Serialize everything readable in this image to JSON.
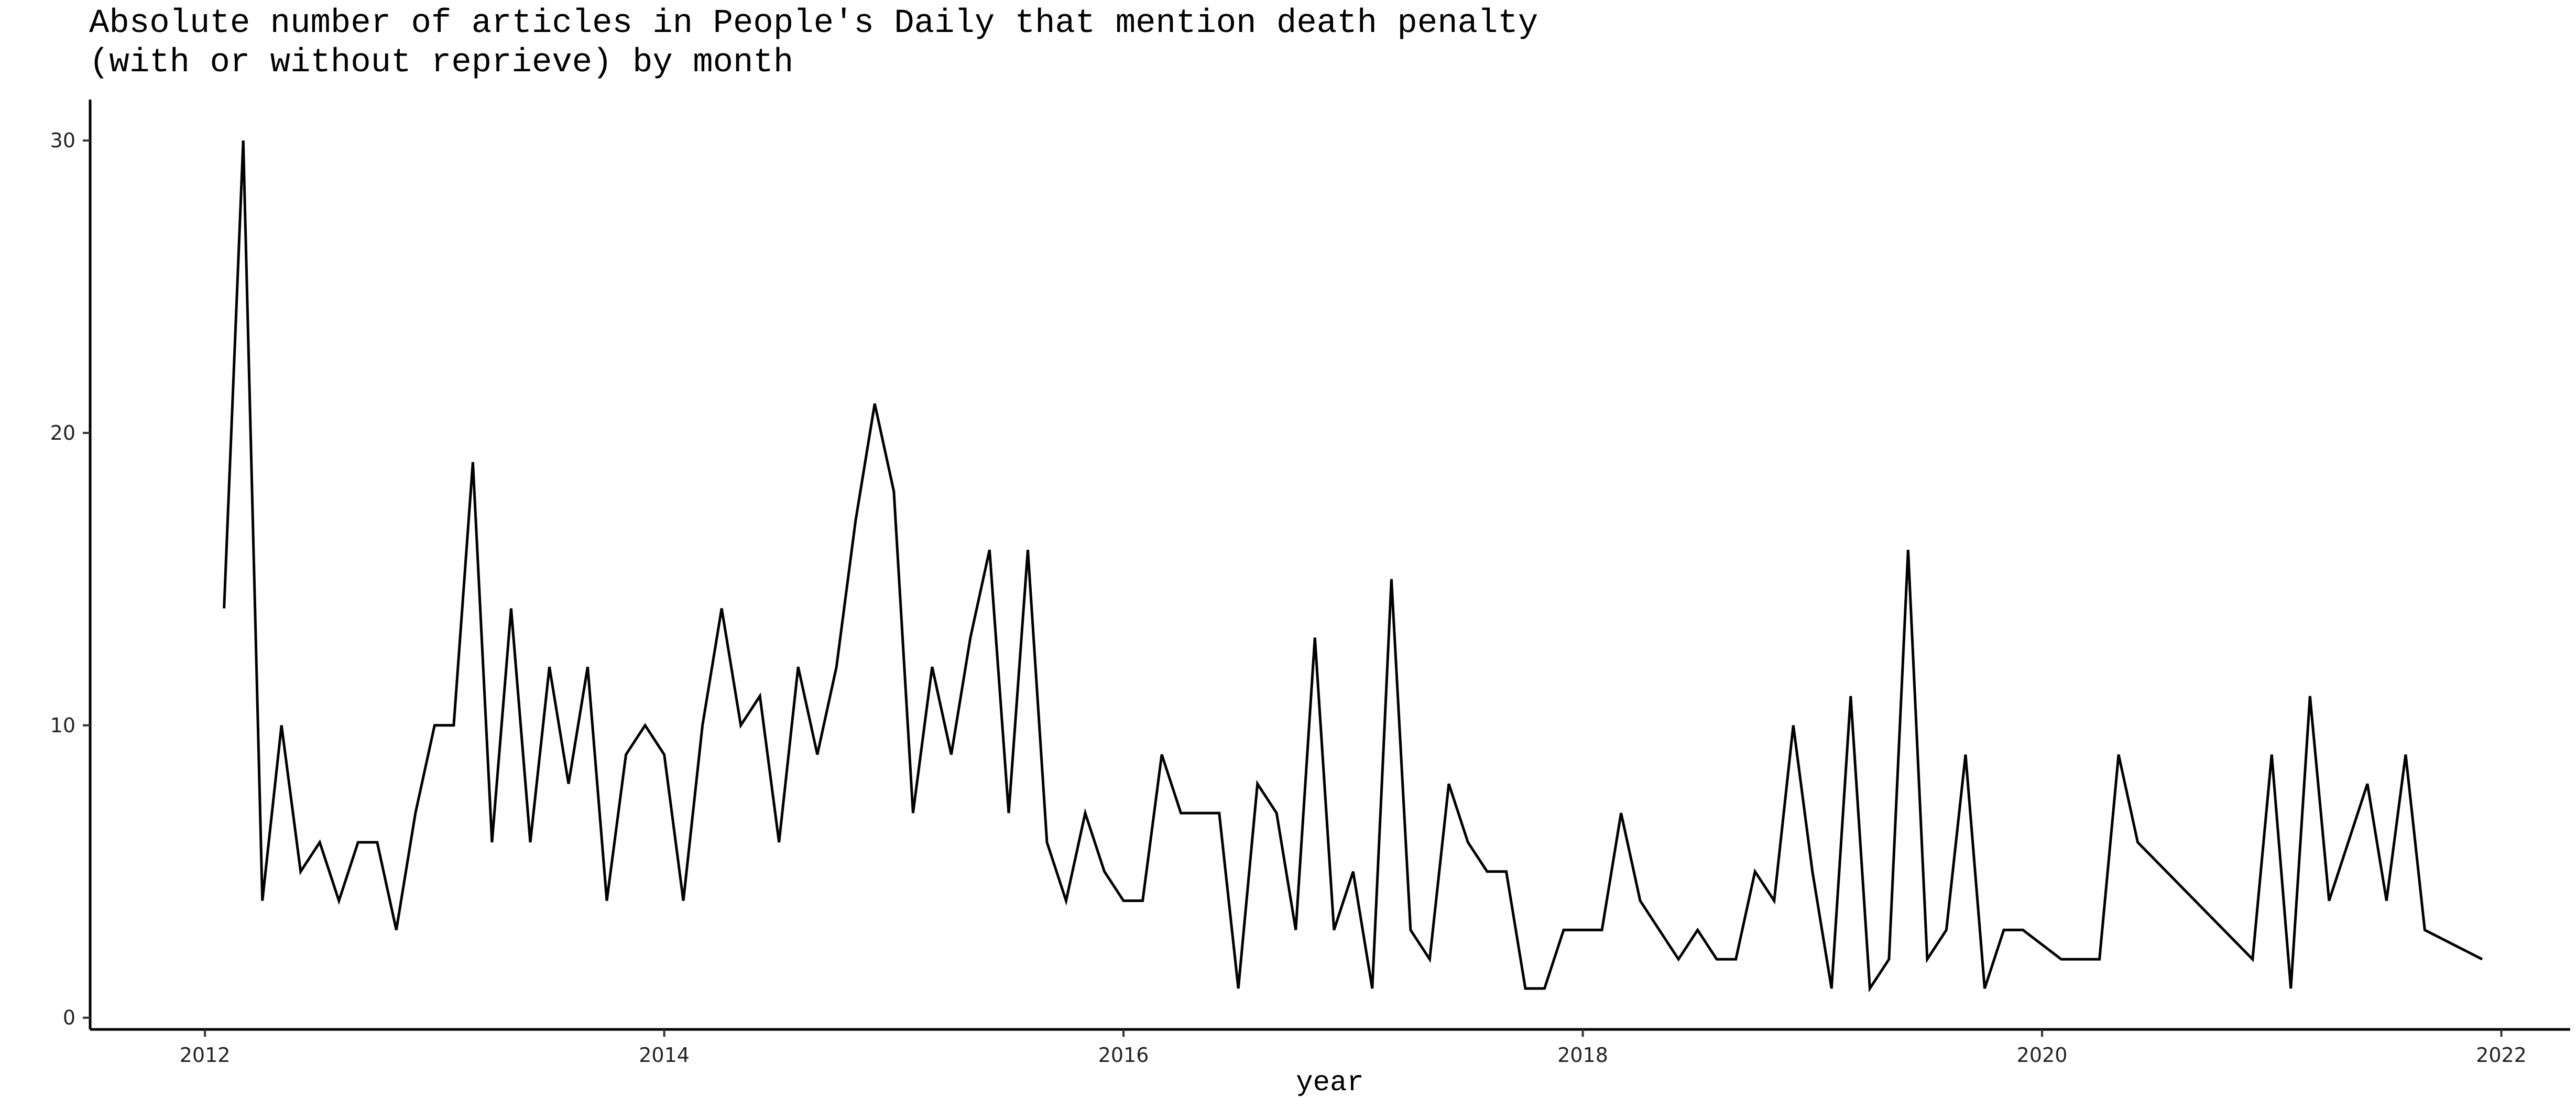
{
  "chart_data": {
    "type": "line",
    "title_line1": "Absolute number of articles in People's Daily that mention death penalty",
    "title_line2": "(with or without reprieve) by month",
    "xlabel": "year",
    "ylabel": "",
    "xlim": [
      2011.5,
      2022.3
    ],
    "ylim": [
      -0.4,
      31.4
    ],
    "x_ticks": [
      "2012",
      "2014",
      "2016",
      "2018",
      "2020",
      "2022"
    ],
    "y_ticks": [
      "0",
      "10",
      "20",
      "30"
    ],
    "grid": false,
    "line_color": "#000000",
    "series": [
      {
        "x": [
          "2012-02",
          "2012-03",
          "2012-04",
          "2012-05",
          "2012-06",
          "2012-07",
          "2012-08",
          "2012-09",
          "2012-10",
          "2012-11",
          "2012-12",
          "2013-01",
          "2013-02",
          "2013-03",
          "2013-04",
          "2013-05",
          "2013-06",
          "2013-07",
          "2013-08",
          "2013-09",
          "2013-10",
          "2013-11",
          "2013-12",
          "2014-01",
          "2014-02",
          "2014-03",
          "2014-04",
          "2014-05",
          "2014-06",
          "2014-07",
          "2014-08",
          "2014-09",
          "2014-10",
          "2014-11",
          "2014-12",
          "2015-01",
          "2015-02",
          "2015-03",
          "2015-04",
          "2015-05",
          "2015-06",
          "2015-07",
          "2015-08",
          "2015-09",
          "2015-10",
          "2015-11",
          "2015-12",
          "2016-01",
          "2016-02",
          "2016-03",
          "2016-04",
          "2016-05",
          "2016-06",
          "2016-07",
          "2016-08",
          "2016-09",
          "2016-10",
          "2016-11",
          "2016-12",
          "2017-01",
          "2017-02",
          "2017-03",
          "2017-04",
          "2017-05",
          "2017-06",
          "2017-07",
          "2017-08",
          "2017-09",
          "2017-10",
          "2017-11",
          "2017-12",
          "2018-01",
          "2018-02",
          "2018-03",
          "2018-04",
          "2018-06",
          "2018-07",
          "2018-08",
          "2018-09",
          "2018-10",
          "2018-11",
          "2018-12",
          "2019-01",
          "2019-02",
          "2019-03",
          "2019-04",
          "2019-05",
          "2019-06",
          "2019-07",
          "2019-08",
          "2019-09",
          "2019-10",
          "2019-11",
          "2019-12",
          "2020-02",
          "2020-03",
          "2020-04",
          "2020-05",
          "2020-06",
          "2020-12",
          "2021-01",
          "2021-02",
          "2021-03",
          "2021-04",
          "2021-06",
          "2021-07",
          "2021-08",
          "2021-09",
          "2021-12"
        ],
        "values": [
          14,
          30,
          4,
          10,
          5,
          6,
          4,
          6,
          6,
          3,
          7,
          10,
          10,
          19,
          6,
          14,
          6,
          12,
          8,
          12,
          4,
          9,
          10,
          9,
          4,
          10,
          14,
          10,
          11,
          6,
          12,
          9,
          12,
          17,
          21,
          18,
          7,
          12,
          9,
          13,
          16,
          7,
          16,
          6,
          4,
          7,
          5,
          4,
          4,
          9,
          7,
          7,
          7,
          1,
          8,
          7,
          3,
          13,
          3,
          5,
          1,
          15,
          3,
          2,
          8,
          6,
          5,
          5,
          1,
          1,
          3,
          3,
          3,
          7,
          4,
          2,
          3,
          2,
          2,
          5,
          4,
          10,
          5,
          1,
          11,
          1,
          2,
          16,
          2,
          3,
          9,
          1,
          3,
          3,
          2,
          2,
          2,
          9,
          6,
          2,
          9,
          1,
          11,
          4,
          8,
          4,
          9,
          3,
          2
        ]
      }
    ]
  }
}
